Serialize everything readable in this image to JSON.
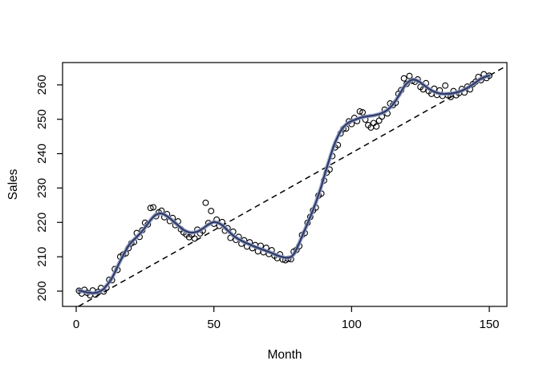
{
  "style": {
    "background": "#ffffff",
    "box_color": "#000000",
    "tick_color": "#000000",
    "text_color": "#000000",
    "point_color": "#000000",
    "smooth_core_color": "#2f3b66",
    "smooth_halo_color": "#93a0c9",
    "trend_color": "#000000"
  },
  "chart_data": {
    "type": "scatter",
    "title": "",
    "xlabel": "Month",
    "ylabel": "Sales",
    "xlim": [
      -4.95,
      156.4
    ],
    "ylim": [
      195.56,
      266.5
    ],
    "xticks": [
      0,
      50,
      100,
      150
    ],
    "yticks": [
      200,
      210,
      220,
      230,
      240,
      250,
      260
    ],
    "grid": false,
    "legend": "none",
    "x": [
      1,
      2,
      3,
      4,
      5,
      6,
      7,
      8,
      9,
      10,
      11,
      12,
      13,
      14,
      15,
      16,
      17,
      18,
      19,
      20,
      21,
      22,
      23,
      24,
      25,
      26,
      27,
      28,
      29,
      30,
      31,
      32,
      33,
      34,
      35,
      36,
      37,
      38,
      39,
      40,
      41,
      42,
      43,
      44,
      45,
      46,
      47,
      48,
      49,
      50,
      51,
      52,
      53,
      54,
      55,
      56,
      57,
      58,
      59,
      60,
      61,
      62,
      63,
      64,
      65,
      66,
      67,
      68,
      69,
      70,
      71,
      72,
      73,
      74,
      75,
      76,
      77,
      78,
      79,
      80,
      81,
      82,
      83,
      84,
      85,
      86,
      87,
      88,
      89,
      90,
      91,
      92,
      93,
      94,
      95,
      96,
      97,
      98,
      99,
      100,
      101,
      102,
      103,
      104,
      105,
      106,
      107,
      108,
      109,
      110,
      111,
      112,
      113,
      114,
      115,
      116,
      117,
      118,
      119,
      120,
      121,
      122,
      123,
      124,
      125,
      126,
      127,
      128,
      129,
      130,
      131,
      132,
      133,
      134,
      135,
      136,
      137,
      138,
      139,
      140,
      141,
      142,
      143,
      144,
      145,
      146,
      147,
      148,
      149,
      150
    ],
    "series": [
      {
        "name": "observed-points",
        "type": "points",
        "values": [
          200.1,
          199.3,
          200.4,
          199.5,
          198.8,
          200.2,
          199.0,
          199.8,
          200.9,
          199.9,
          201.0,
          203.3,
          203.2,
          206.4,
          206.2,
          210.0,
          210.6,
          211.0,
          212.5,
          213.9,
          214.3,
          216.9,
          215.8,
          217.7,
          219.9,
          219.4,
          224.2,
          224.4,
          221.8,
          222.9,
          223.4,
          221.5,
          222.4,
          220.4,
          221.3,
          219.2,
          220.3,
          218.0,
          217.1,
          216.5,
          215.7,
          216.4,
          215.3,
          217.9,
          216.8,
          217.6,
          225.7,
          219.8,
          223.3,
          219.6,
          220.8,
          219.0,
          220.1,
          217.6,
          218.3,
          215.5,
          217.3,
          214.9,
          215.8,
          213.8,
          214.8,
          213.0,
          214.2,
          212.5,
          213.4,
          211.6,
          213.2,
          211.3,
          212.6,
          210.8,
          211.9,
          210.3,
          209.6,
          210.7,
          209.2,
          209.0,
          209.4,
          209.3,
          211.5,
          212.0,
          213.1,
          216.3,
          216.9,
          219.9,
          221.6,
          223.5,
          224.3,
          227.8,
          228.4,
          232.2,
          234.5,
          235.4,
          239.3,
          241.8,
          242.5,
          245.9,
          247.2,
          247.3,
          249.4,
          248.6,
          250.4,
          249.5,
          252.3,
          252.0,
          249.9,
          248.3,
          247.6,
          248.9,
          247.9,
          249.6,
          250.8,
          252.8,
          251.7,
          254.6,
          254.1,
          254.8,
          257.4,
          258.5,
          261.9,
          260.3,
          262.6,
          261.2,
          260.9,
          261.6,
          259.4,
          258.7,
          260.5,
          258.2,
          257.4,
          258.9,
          257.1,
          258.4,
          256.8,
          259.8,
          257.0,
          256.5,
          258.2,
          257.0,
          257.6,
          258.8,
          257.8,
          259.5,
          258.7,
          260.2,
          260.9,
          262.3,
          261.4,
          263.1,
          262.0,
          262.7
        ]
      },
      {
        "name": "loess-smooth-line",
        "type": "line",
        "values": [
          200.2,
          200.0,
          199.8,
          199.6,
          199.5,
          199.4,
          199.5,
          199.7,
          200.1,
          200.6,
          201.6,
          202.6,
          203.8,
          205.4,
          207.1,
          208.8,
          210.3,
          211.8,
          213.2,
          214.2,
          215.0,
          215.8,
          216.6,
          217.5,
          218.5,
          219.6,
          220.7,
          221.6,
          222.2,
          222.6,
          222.6,
          222.3,
          221.8,
          221.2,
          220.5,
          219.8,
          219.1,
          218.4,
          217.8,
          217.4,
          217.1,
          217.0,
          217.1,
          217.3,
          217.7,
          218.2,
          218.8,
          219.4,
          219.8,
          220.1,
          220.0,
          219.7,
          219.2,
          218.5,
          217.7,
          216.9,
          216.2,
          215.6,
          215.1,
          214.7,
          214.3,
          213.9,
          213.6,
          213.2,
          212.9,
          212.6,
          212.3,
          212.0,
          211.7,
          211.4,
          211.1,
          210.7,
          210.4,
          210.1,
          209.9,
          209.7,
          209.7,
          209.9,
          210.7,
          212.2,
          214.0,
          215.9,
          217.8,
          219.7,
          221.6,
          223.6,
          225.7,
          228.0,
          230.5,
          233.2,
          235.9,
          238.5,
          241.0,
          243.2,
          245.0,
          246.5,
          247.7,
          248.5,
          249.1,
          249.5,
          249.8,
          250.1,
          250.4,
          250.6,
          250.8,
          250.9,
          251.0,
          251.1,
          251.3,
          251.5,
          251.8,
          252.2,
          252.7,
          253.4,
          254.3,
          255.4,
          256.7,
          258.1,
          259.4,
          260.4,
          261.1,
          261.5,
          261.5,
          261.2,
          260.7,
          260.1,
          259.5,
          258.9,
          258.4,
          258.0,
          257.7,
          257.5,
          257.4,
          257.4,
          257.4,
          257.5,
          257.6,
          257.8,
          258.0,
          258.3,
          258.7,
          259.1,
          259.6,
          260.1,
          260.7,
          261.3,
          261.8,
          262.2,
          262.5,
          262.7
        ]
      },
      {
        "name": "linear-trend-line",
        "type": "dashed-line",
        "x": [
          0.9,
          156.4
        ],
        "values": [
          195.6,
          265.6
        ]
      }
    ]
  }
}
